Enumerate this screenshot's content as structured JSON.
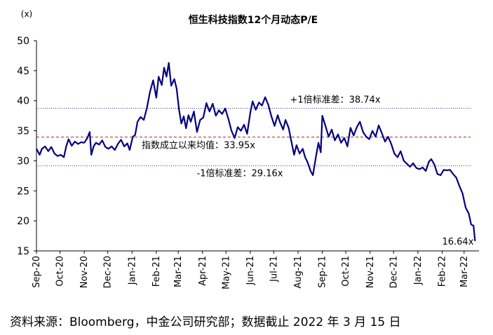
{
  "chart_data": {
    "type": "line",
    "title": "恒生科技指数12个月动态P/E",
    "ylabel": "(x)",
    "ylim": [
      15,
      50
    ],
    "yticks": [
      15,
      20,
      25,
      30,
      35,
      40,
      45,
      50
    ],
    "xlim": [
      "2020-09-01",
      "2022-03-20"
    ],
    "xticks": [
      {
        "date": "2020-09-01",
        "label": "Sep-20"
      },
      {
        "date": "2020-10-01",
        "label": "Oct-20"
      },
      {
        "date": "2020-11-01",
        "label": "Nov-20"
      },
      {
        "date": "2020-12-01",
        "label": "Dec-20"
      },
      {
        "date": "2021-01-01",
        "label": "Jan-21"
      },
      {
        "date": "2021-02-01",
        "label": "Feb-21"
      },
      {
        "date": "2021-03-01",
        "label": "Mar-21"
      },
      {
        "date": "2021-04-01",
        "label": "Apr-21"
      },
      {
        "date": "2021-05-01",
        "label": "May-21"
      },
      {
        "date": "2021-06-01",
        "label": "Jun-21"
      },
      {
        "date": "2021-07-01",
        "label": "Jul-21"
      },
      {
        "date": "2021-08-01",
        "label": "Aug-21"
      },
      {
        "date": "2021-09-01",
        "label": "Sep-21"
      },
      {
        "date": "2021-10-01",
        "label": "Oct-21"
      },
      {
        "date": "2021-11-01",
        "label": "Nov-21"
      },
      {
        "date": "2021-12-01",
        "label": "Dec-21"
      },
      {
        "date": "2022-01-01",
        "label": "Jan-22"
      },
      {
        "date": "2022-02-01",
        "label": "Feb-22"
      },
      {
        "date": "2022-03-01",
        "label": "Mar-22"
      }
    ],
    "reference_lines": [
      {
        "value": 38.74,
        "label": "+1倍标准差：38.74x",
        "style": "dotted",
        "color": "#2f2f8f"
      },
      {
        "value": 33.95,
        "label": "指数成立以来均值：33.95x",
        "style": "dashed",
        "color": "#b22222"
      },
      {
        "value": 29.16,
        "label": "-1倍标准差：29.16x",
        "style": "dotted",
        "color": "#2f2f8f"
      }
    ],
    "last_value_label": "16.64x",
    "series": [
      {
        "color": "#000080",
        "points": [
          [
            "2020-09-01",
            32.0
          ],
          [
            "2020-09-05",
            31.0
          ],
          [
            "2020-09-08",
            32.0
          ],
          [
            "2020-09-12",
            32.4
          ],
          [
            "2020-09-16",
            31.6
          ],
          [
            "2020-09-20",
            32.3
          ],
          [
            "2020-09-24",
            31.2
          ],
          [
            "2020-09-28",
            30.8
          ],
          [
            "2020-10-02",
            31.0
          ],
          [
            "2020-10-06",
            30.6
          ],
          [
            "2020-10-09",
            32.4
          ],
          [
            "2020-10-12",
            33.6
          ],
          [
            "2020-10-16",
            32.5
          ],
          [
            "2020-10-20",
            33.2
          ],
          [
            "2020-10-24",
            32.8
          ],
          [
            "2020-10-28",
            33.1
          ],
          [
            "2020-11-01",
            33.0
          ],
          [
            "2020-11-05",
            33.8
          ],
          [
            "2020-11-08",
            34.8
          ],
          [
            "2020-11-10",
            31.0
          ],
          [
            "2020-11-13",
            32.4
          ],
          [
            "2020-11-16",
            33.0
          ],
          [
            "2020-11-20",
            32.7
          ],
          [
            "2020-11-24",
            33.4
          ],
          [
            "2020-11-28",
            32.3
          ],
          [
            "2020-12-02",
            32.0
          ],
          [
            "2020-12-06",
            32.4
          ],
          [
            "2020-12-10",
            31.8
          ],
          [
            "2020-12-14",
            32.8
          ],
          [
            "2020-12-18",
            33.5
          ],
          [
            "2020-12-22",
            32.4
          ],
          [
            "2020-12-26",
            32.9
          ],
          [
            "2020-12-29",
            31.8
          ],
          [
            "2021-01-02",
            34.0
          ],
          [
            "2021-01-05",
            34.3
          ],
          [
            "2021-01-08",
            36.5
          ],
          [
            "2021-01-12",
            37.3
          ],
          [
            "2021-01-16",
            36.8
          ],
          [
            "2021-01-20",
            38.8
          ],
          [
            "2021-01-24",
            41.5
          ],
          [
            "2021-01-28",
            43.4
          ],
          [
            "2021-02-01",
            40.5
          ],
          [
            "2021-02-04",
            44.0
          ],
          [
            "2021-02-08",
            42.6
          ],
          [
            "2021-02-11",
            45.5
          ],
          [
            "2021-02-14",
            44.0
          ],
          [
            "2021-02-17",
            46.3
          ],
          [
            "2021-02-20",
            42.5
          ],
          [
            "2021-02-24",
            43.6
          ],
          [
            "2021-02-27",
            42.0
          ],
          [
            "2021-03-02",
            38.5
          ],
          [
            "2021-03-05",
            36.2
          ],
          [
            "2021-03-08",
            37.4
          ],
          [
            "2021-03-11",
            35.4
          ],
          [
            "2021-03-14",
            37.6
          ],
          [
            "2021-03-17",
            36.5
          ],
          [
            "2021-03-21",
            38.2
          ],
          [
            "2021-03-25",
            34.8
          ],
          [
            "2021-03-29",
            36.8
          ],
          [
            "2021-04-02",
            37.2
          ],
          [
            "2021-04-06",
            39.6
          ],
          [
            "2021-04-10",
            38.2
          ],
          [
            "2021-04-14",
            39.5
          ],
          [
            "2021-04-18",
            37.5
          ],
          [
            "2021-04-22",
            38.4
          ],
          [
            "2021-04-26",
            37.8
          ],
          [
            "2021-04-30",
            38.7
          ],
          [
            "2021-05-04",
            37.0
          ],
          [
            "2021-05-08",
            35.0
          ],
          [
            "2021-05-12",
            33.8
          ],
          [
            "2021-05-16",
            35.6
          ],
          [
            "2021-05-20",
            35.0
          ],
          [
            "2021-05-24",
            36.0
          ],
          [
            "2021-05-28",
            34.5
          ],
          [
            "2021-06-01",
            38.0
          ],
          [
            "2021-06-04",
            39.9
          ],
          [
            "2021-06-08",
            38.5
          ],
          [
            "2021-06-12",
            39.7
          ],
          [
            "2021-06-16",
            39.2
          ],
          [
            "2021-06-20",
            40.6
          ],
          [
            "2021-06-24",
            39.3
          ],
          [
            "2021-06-28",
            37.4
          ],
          [
            "2021-07-02",
            35.8
          ],
          [
            "2021-07-06",
            37.6
          ],
          [
            "2021-07-09",
            36.4
          ],
          [
            "2021-07-13",
            35.2
          ],
          [
            "2021-07-16",
            36.8
          ],
          [
            "2021-07-20",
            35.5
          ],
          [
            "2021-07-23",
            33.5
          ],
          [
            "2021-07-27",
            31.0
          ],
          [
            "2021-07-30",
            32.6
          ],
          [
            "2021-08-03",
            31.2
          ],
          [
            "2021-08-07",
            32.0
          ],
          [
            "2021-08-10",
            30.6
          ],
          [
            "2021-08-13",
            29.8
          ],
          [
            "2021-08-17",
            28.3
          ],
          [
            "2021-08-20",
            27.6
          ],
          [
            "2021-08-24",
            30.8
          ],
          [
            "2021-08-27",
            33.0
          ],
          [
            "2021-08-30",
            31.4
          ],
          [
            "2021-09-01",
            37.5
          ],
          [
            "2021-09-05",
            35.8
          ],
          [
            "2021-09-09",
            34.0
          ],
          [
            "2021-09-13",
            35.2
          ],
          [
            "2021-09-17",
            33.4
          ],
          [
            "2021-09-21",
            34.4
          ],
          [
            "2021-09-25",
            33.0
          ],
          [
            "2021-09-29",
            33.8
          ],
          [
            "2021-10-03",
            32.4
          ],
          [
            "2021-10-07",
            35.5
          ],
          [
            "2021-10-11",
            34.2
          ],
          [
            "2021-10-15",
            35.6
          ],
          [
            "2021-10-19",
            36.5
          ],
          [
            "2021-10-23",
            34.8
          ],
          [
            "2021-10-27",
            34.0
          ],
          [
            "2021-10-31",
            33.6
          ],
          [
            "2021-11-04",
            35.0
          ],
          [
            "2021-11-08",
            34.0
          ],
          [
            "2021-11-12",
            35.9
          ],
          [
            "2021-11-16",
            34.6
          ],
          [
            "2021-11-20",
            33.2
          ],
          [
            "2021-11-24",
            34.0
          ],
          [
            "2021-11-28",
            32.8
          ],
          [
            "2021-12-02",
            31.2
          ],
          [
            "2021-12-06",
            30.6
          ],
          [
            "2021-12-10",
            31.6
          ],
          [
            "2021-12-14",
            30.0
          ],
          [
            "2021-12-18",
            29.5
          ],
          [
            "2021-12-22",
            29.0
          ],
          [
            "2021-12-26",
            29.6
          ],
          [
            "2021-12-30",
            28.8
          ],
          [
            "2022-01-03",
            28.6
          ],
          [
            "2022-01-07",
            28.9
          ],
          [
            "2022-01-11",
            28.3
          ],
          [
            "2022-01-15",
            29.8
          ],
          [
            "2022-01-18",
            30.3
          ],
          [
            "2022-01-22",
            29.4
          ],
          [
            "2022-01-26",
            27.8
          ],
          [
            "2022-01-30",
            27.6
          ],
          [
            "2022-02-03",
            28.5
          ],
          [
            "2022-02-07",
            28.4
          ],
          [
            "2022-02-11",
            28.5
          ],
          [
            "2022-02-15",
            27.8
          ],
          [
            "2022-02-19",
            27.2
          ],
          [
            "2022-02-23",
            25.8
          ],
          [
            "2022-02-27",
            24.6
          ],
          [
            "2022-03-03",
            22.2
          ],
          [
            "2022-03-07",
            21.2
          ],
          [
            "2022-03-10",
            19.4
          ],
          [
            "2022-03-13",
            19.2
          ],
          [
            "2022-03-15",
            16.64
          ]
        ]
      }
    ]
  },
  "source": "资料来源：Bloomberg，中金公司研究部；数据截止 2022 年 3 月 15 日"
}
